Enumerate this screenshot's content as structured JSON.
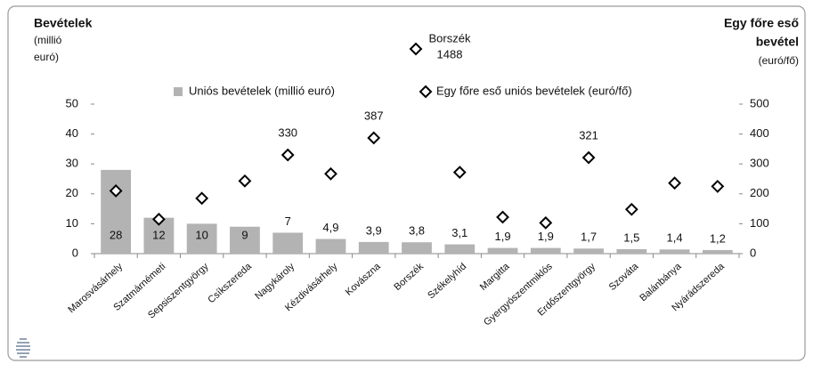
{
  "chart_data": {
    "type": "bar",
    "y_title": [
      "Bevételek",
      "(millió",
      "euró)"
    ],
    "y2_title": [
      "Egy főre eső",
      "bevétel",
      "(euró/fő)"
    ],
    "categories": [
      "Marosvásárhely",
      "Szatmárnémeti",
      "Sepsiszentgyörgy",
      "Csíkszereda",
      "Nagykároly",
      "Kézdivásárhely",
      "Kovászna",
      "Borszék",
      "Székelyhíd",
      "Margitta",
      "Gyergyószentmiklós",
      "Erdőszentgyörgy",
      "Szováta",
      "Balánbánya",
      "Nyárádszereda"
    ],
    "series": [
      {
        "name": "Uniós bevételek (millió euró)",
        "type": "bar",
        "color": "#b3b3b3",
        "values": [
          28,
          12,
          10,
          9,
          7,
          4.9,
          3.9,
          3.8,
          3.1,
          1.9,
          1.9,
          1.7,
          1.5,
          1.4,
          1.2
        ],
        "value_labels": [
          "28",
          "12",
          "10",
          "9",
          "7",
          "4,9",
          "3,9",
          "3,8",
          "3,1",
          "1,9",
          "1,9",
          "1,7",
          "1,5",
          "1,4",
          "1,2"
        ]
      },
      {
        "name": "Egy főre eső uniós bevételek (euró/fő)",
        "type": "scatter",
        "axis": "y2",
        "color": "#000000",
        "values": [
          210,
          115,
          185,
          243,
          330,
          267,
          387,
          1488,
          272,
          122,
          103,
          321,
          148,
          236,
          225
        ],
        "value_labels": [
          null,
          null,
          null,
          null,
          "330",
          null,
          "387",
          "1488",
          null,
          null,
          null,
          "321",
          null,
          null,
          null
        ]
      }
    ],
    "annotation": "Borszék",
    "ylim": [
      0,
      50
    ],
    "yticks": [
      0,
      10,
      20,
      30,
      40,
      50
    ],
    "y2lim": [
      0,
      500
    ],
    "y2ticks": [
      0,
      100,
      200,
      300,
      400,
      500
    ],
    "grid": false
  }
}
